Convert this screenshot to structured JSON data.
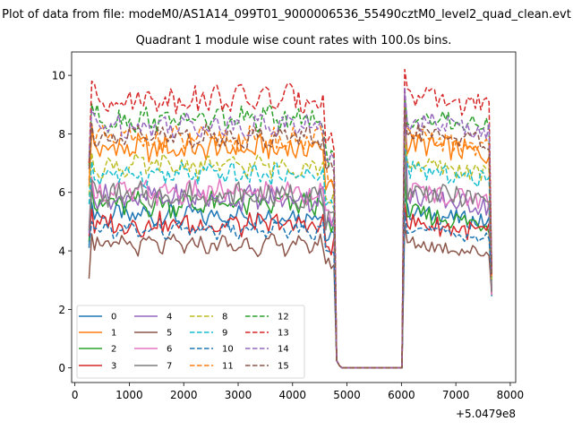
{
  "suptitle": "Plot of data from file: modeM0/AS1A14_099T01_9000006536_55490cztM0_level2_quad_clean.evt",
  "chart_data": {
    "type": "line",
    "title": "Quadrant 1 module wise count rates with 100.0s bins.",
    "xlabel": "",
    "ylabel": "",
    "offset_text": "+5.0479e8",
    "xlim": [
      -60,
      8100
    ],
    "ylim": [
      -0.5,
      10.8
    ],
    "x_ticks": [
      0,
      1000,
      2000,
      3000,
      4000,
      5000,
      6000,
      7000,
      8000
    ],
    "x_tick_labels": [
      "0",
      "1000",
      "2000",
      "3000",
      "4000",
      "5000",
      "6000",
      "7000",
      "8000"
    ],
    "y_ticks": [
      0,
      2,
      4,
      6,
      8,
      10
    ],
    "y_tick_labels": [
      "0",
      "2",
      "4",
      "6",
      "8",
      "10"
    ],
    "grid": false,
    "legend_position": "lower left",
    "legend_columns": 4,
    "seg1": {
      "start": 260,
      "end": 4760,
      "step": 50
    },
    "seg2": {
      "start": 6060,
      "end": 7660,
      "step": 50
    },
    "series": [
      {
        "name": "0",
        "color": "#1f77b4",
        "dash": "solid",
        "base": 5.2,
        "amp": 0.3,
        "base2": 5.35,
        "edge_start": 4.1,
        "edge_end": 2.45,
        "peak": 5.8
      },
      {
        "name": "1",
        "color": "#ff7f0e",
        "dash": "solid",
        "base": 7.5,
        "amp": 0.4,
        "base2": 7.7,
        "edge_start": 6.2,
        "edge_end": 2.5,
        "peak": 8.6
      },
      {
        "name": "2",
        "color": "#2ca02c",
        "dash": "solid",
        "base": 5.6,
        "amp": 0.35,
        "base2": 5.3,
        "edge_start": 4.3,
        "edge_end": 2.5,
        "peak": 6.6
      },
      {
        "name": "3",
        "color": "#d62728",
        "dash": "solid",
        "base": 4.9,
        "amp": 0.35,
        "base2": 5.0,
        "edge_start": 4.5,
        "edge_end": 2.5,
        "peak": 5.6
      },
      {
        "name": "4",
        "color": "#9467bd",
        "dash": "solid",
        "base": 5.8,
        "amp": 0.35,
        "base2": 5.9,
        "edge_start": 4.6,
        "edge_end": 2.6,
        "peak": 9.4
      },
      {
        "name": "5",
        "color": "#8c564b",
        "dash": "solid",
        "base": 4.2,
        "amp": 0.25,
        "base2": 4.3,
        "edge_start": 3.05,
        "edge_end": 2.5,
        "peak": 4.9
      },
      {
        "name": "6",
        "color": "#e377c2",
        "dash": "solid",
        "base": 6.0,
        "amp": 0.35,
        "base2": 6.1,
        "edge_start": 4.8,
        "edge_end": 2.5,
        "peak": 7.2
      },
      {
        "name": "7",
        "color": "#7f7f7f",
        "dash": "solid",
        "base": 5.9,
        "amp": 0.35,
        "base2": 6.1,
        "edge_start": 4.7,
        "edge_end": 2.6,
        "peak": 7.6
      },
      {
        "name": "8",
        "color": "#bcbd22",
        "dash": "dashed",
        "base": 6.9,
        "amp": 0.3,
        "base2": 7.0,
        "edge_start": 5.9,
        "edge_end": 3.0,
        "peak": 8.0
      },
      {
        "name": "9",
        "color": "#17becf",
        "dash": "dashed",
        "base": 6.6,
        "amp": 0.3,
        "base2": 6.8,
        "edge_start": 5.6,
        "edge_end": 3.1,
        "peak": 7.5
      },
      {
        "name": "10",
        "color": "#1f77b4",
        "dash": "dashed",
        "base": 4.7,
        "amp": 0.2,
        "base2": 4.8,
        "edge_start": 4.2,
        "edge_end": 3.0,
        "peak": 5.3
      },
      {
        "name": "11",
        "color": "#ff7f0e",
        "dash": "dashed",
        "base": 7.8,
        "amp": 0.35,
        "base2": 7.9,
        "edge_start": 6.4,
        "edge_end": 3.1,
        "peak": 9.2
      },
      {
        "name": "12",
        "color": "#2ca02c",
        "dash": "dashed",
        "base": 8.5,
        "amp": 0.35,
        "base2": 8.6,
        "edge_start": 6.9,
        "edge_end": 3.2,
        "peak": 9.3
      },
      {
        "name": "13",
        "color": "#d62728",
        "dash": "dashed",
        "base": 9.2,
        "amp": 0.4,
        "base2": 9.3,
        "edge_start": 7.0,
        "edge_end": 3.2,
        "peak": 10.2
      },
      {
        "name": "14",
        "color": "#9467bd",
        "dash": "dashed",
        "base": 8.3,
        "amp": 0.35,
        "base2": 8.5,
        "edge_start": 7.2,
        "edge_end": 3.2,
        "peak": 9.6
      },
      {
        "name": "15",
        "color": "#8c564b",
        "dash": "dashed",
        "base": 7.9,
        "amp": 0.3,
        "base2": 8.1,
        "edge_start": 6.8,
        "edge_end": 3.2,
        "peak": 8.8
      }
    ]
  }
}
